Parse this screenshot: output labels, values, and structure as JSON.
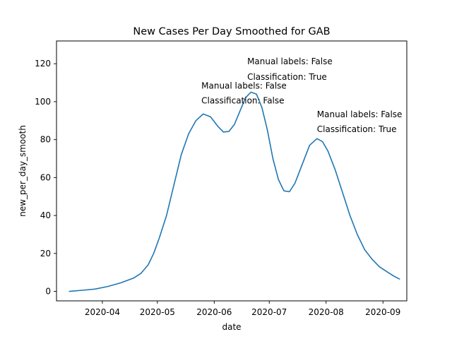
{
  "chart_data": {
    "type": "line",
    "title": "New Cases Per Day Smoothed for GAB",
    "xlabel": "date",
    "ylabel": "new_per_day_smooth",
    "x_ticks": [
      "2020-04",
      "2020-05",
      "2020-06",
      "2020-07",
      "2020-08",
      "2020-09"
    ],
    "y_ticks": [
      "0",
      "20",
      "40",
      "60",
      "80",
      "100",
      "120"
    ],
    "xlim": [
      "2020-03-07",
      "2020-09-14"
    ],
    "ylim": [
      -5,
      132
    ],
    "grid": false,
    "series": [
      {
        "color": "#1f77b4",
        "x": [
          "2020-03-14",
          "2020-03-21",
          "2020-03-28",
          "2020-04-04",
          "2020-04-11",
          "2020-04-18",
          "2020-04-22",
          "2020-04-26",
          "2020-04-29",
          "2020-05-02",
          "2020-05-06",
          "2020-05-10",
          "2020-05-14",
          "2020-05-18",
          "2020-05-22",
          "2020-05-26",
          "2020-05-30",
          "2020-06-03",
          "2020-06-06",
          "2020-06-09",
          "2020-06-12",
          "2020-06-15",
          "2020-06-18",
          "2020-06-21",
          "2020-06-24",
          "2020-06-27",
          "2020-06-30",
          "2020-07-03",
          "2020-07-06",
          "2020-07-09",
          "2020-07-12",
          "2020-07-15",
          "2020-07-19",
          "2020-07-23",
          "2020-07-27",
          "2020-07-30",
          "2020-08-02",
          "2020-08-06",
          "2020-08-10",
          "2020-08-14",
          "2020-08-18",
          "2020-08-22",
          "2020-08-26",
          "2020-08-30",
          "2020-09-03",
          "2020-09-07",
          "2020-09-10"
        ],
        "y": [
          0,
          0.6,
          1.2,
          2.6,
          4.5,
          7.0,
          9.5,
          14,
          20,
          28,
          40,
          56,
          72,
          83,
          90,
          93.5,
          92,
          87,
          84,
          84.3,
          88,
          95,
          102,
          105,
          104,
          97,
          85,
          70,
          59,
          53,
          52.5,
          57,
          67,
          77,
          80.5,
          79,
          74,
          64,
          52,
          40,
          30,
          22,
          17,
          13,
          10.5,
          8,
          6.5
        ]
      }
    ],
    "annotations": [
      {
        "id": "a",
        "date": "2020-05-25",
        "lines": [
          "Manual labels: False",
          "Classification: False"
        ],
        "y": [
          106.8,
          99
        ]
      },
      {
        "id": "b",
        "date": "2020-06-19",
        "lines": [
          "Manual labels: False",
          "Classification: True"
        ],
        "y": [
          119.8,
          111.5
        ]
      },
      {
        "id": "c",
        "date": "2020-07-27",
        "lines": [
          "Manual labels: False",
          "Classification: True"
        ],
        "y": [
          91.8,
          84
        ]
      }
    ]
  }
}
